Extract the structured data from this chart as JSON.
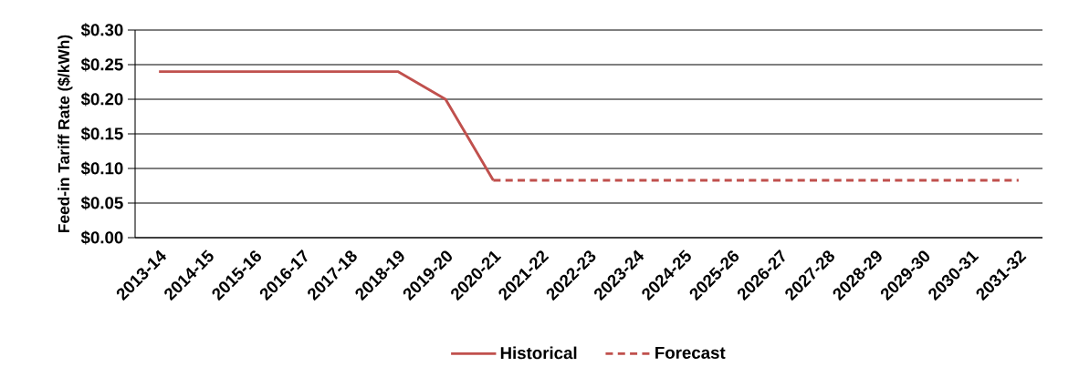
{
  "chart_data": {
    "type": "line",
    "ylabel": "Feed-in Tariff Rate ($/kWh)",
    "categories": [
      "2013-14",
      "2014-15",
      "2015-16",
      "2016-17",
      "2017-18",
      "2018-19",
      "2019-20",
      "2020-21",
      "2021-22",
      "2022-23",
      "2023-24",
      "2024-25",
      "2025-26",
      "2026-27",
      "2027-28",
      "2028-29",
      "2029-30",
      "2030-31",
      "2031-32"
    ],
    "series": [
      {
        "name": "Historical",
        "color": "#c0504d",
        "line_style": "solid",
        "values": [
          0.24,
          0.24,
          0.24,
          0.24,
          0.24,
          0.24,
          0.2,
          0.083,
          null,
          null,
          null,
          null,
          null,
          null,
          null,
          null,
          null,
          null,
          null
        ]
      },
      {
        "name": "Forecast",
        "color": "#c0504d",
        "line_style": "dashed",
        "values": [
          null,
          null,
          null,
          null,
          null,
          null,
          null,
          0.083,
          0.083,
          0.083,
          0.083,
          0.083,
          0.083,
          0.083,
          0.083,
          0.083,
          0.083,
          0.083,
          0.083
        ]
      }
    ],
    "ylim": [
      0,
      0.3
    ],
    "yticks": [
      {
        "value": 0,
        "label": "$0.00"
      },
      {
        "value": 0.05,
        "label": "$0.05"
      },
      {
        "value": 0.1,
        "label": "$0.10"
      },
      {
        "value": 0.15,
        "label": "$0.15"
      },
      {
        "value": 0.2,
        "label": "$0.20"
      },
      {
        "value": 0.25,
        "label": "$0.25"
      },
      {
        "value": 0.3,
        "label": "$0.30"
      }
    ],
    "grid": "y",
    "legend": "bottom",
    "marker": "none"
  }
}
